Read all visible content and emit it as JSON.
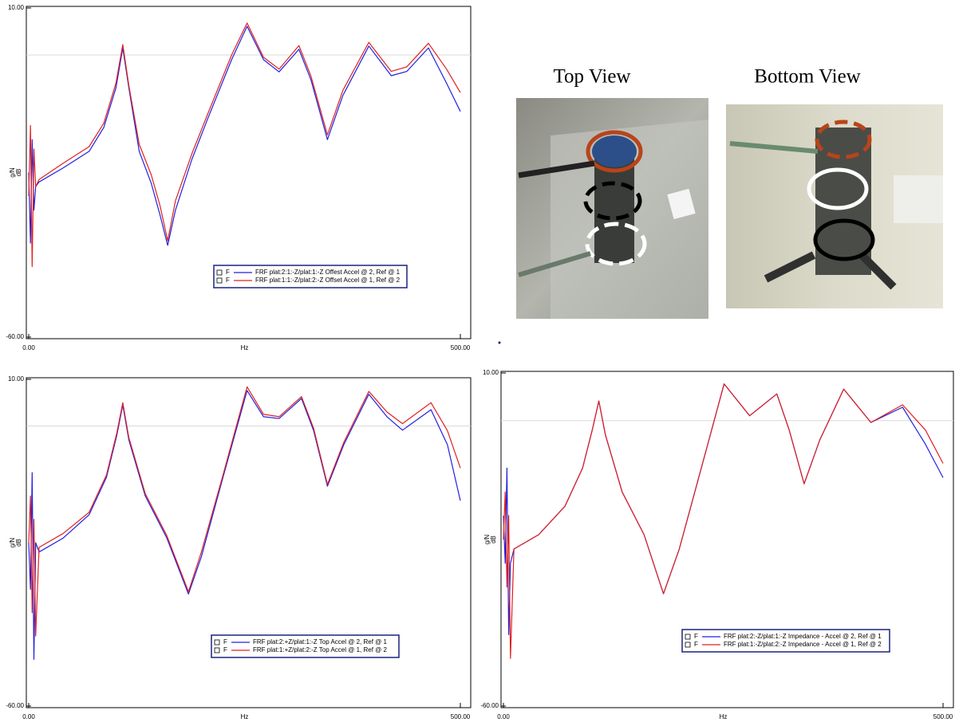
{
  "chart_data": [
    {
      "type": "line",
      "x": [
        0,
        2,
        4,
        6,
        8,
        12,
        40,
        70,
        87,
        101,
        109,
        116,
        128,
        142,
        152,
        161,
        170,
        189,
        207,
        235,
        253,
        272,
        290,
        313,
        327,
        346,
        364,
        394,
        420,
        438,
        463,
        484,
        500
      ],
      "series": [
        {
          "name": "FRF plat:2:1:-Z/plat:1:-Z  Offest Accel @ 2, Ref @ 1",
          "color": "#2020e0",
          "values": [
            -25,
            -40,
            -18,
            -33,
            -28,
            -27,
            -24,
            -20.5,
            -15.4,
            -7,
            1.5,
            -7,
            -20.5,
            -27.3,
            -34,
            -40.5,
            -33,
            -22.2,
            -13.7,
            -1,
            6.1,
            -1,
            -3.6,
            1.2,
            -5.3,
            -18,
            -8.6,
            1.9,
            -4.4,
            -3.5,
            1.5,
            -6,
            -12
          ]
        },
        {
          "name": "FRF plat:1:1:-Z/plat:2:-Z  Offset Accel @ 1, Ref @ 2",
          "color": "#e02020",
          "values": [
            -30,
            -15,
            -45,
            -20,
            -28,
            -26.5,
            -23,
            -19.5,
            -14.5,
            -6,
            2.2,
            -6.5,
            -19,
            -25.5,
            -32,
            -39.5,
            -31,
            -21,
            -12.7,
            0,
            6.8,
            -0.5,
            -3,
            2,
            -4.5,
            -17,
            -7.5,
            2.7,
            -3.5,
            -2.5,
            2.5,
            -3,
            -8
          ]
        }
      ],
      "xlim": [
        0,
        500
      ],
      "ylim": [
        -60,
        10
      ],
      "xticks": [
        {
          "value": 0,
          "label": "0.00"
        },
        {
          "value": 500,
          "label": "500.00"
        }
      ],
      "yticks": [
        {
          "value": -60,
          "label": "-60.00"
        },
        {
          "value": 10,
          "label": "10.00"
        }
      ],
      "x_label": "Hz",
      "y_label": [
        "g/N",
        "dB"
      ],
      "reference_line": 0,
      "legend": "lower right",
      "legend_flag": "F"
    },
    {
      "type": "line",
      "x": [
        0,
        2,
        4,
        6,
        8,
        12,
        40,
        70,
        90,
        102,
        109,
        116,
        135,
        160,
        185,
        200,
        225,
        253,
        272,
        290,
        316,
        330,
        346,
        365,
        394,
        415,
        433,
        466,
        485,
        500
      ],
      "series": [
        {
          "name": "FRF plat:2:+Z/plat:1:-Z  Top Accel @ 2, Ref @ 1",
          "color": "#2020e0",
          "values": [
            -25,
            -35,
            -10,
            -50,
            -25,
            -27,
            -24,
            -19,
            -11,
            -2,
            4.5,
            -3,
            -15,
            -24,
            -36,
            -28,
            -11,
            7.6,
            2,
            1.6,
            5.9,
            -1,
            -12.9,
            -4,
            6.8,
            2,
            -0.9,
            3.5,
            -4,
            -16
          ]
        },
        {
          "name": "FRF plat:1:+Z/plat:2:-Z  Top Accel @ 1, Ref @ 2",
          "color": "#e02020",
          "values": [
            -25,
            -15,
            -40,
            -20,
            -45,
            -26,
            -23,
            -18.5,
            -10.5,
            -1.5,
            5,
            -2.5,
            -14.5,
            -23.5,
            -35.5,
            -27,
            -10.5,
            8.4,
            2.5,
            2,
            6.3,
            -0.5,
            -12.5,
            -3.5,
            7.4,
            3,
            0.5,
            5,
            -1,
            -9
          ]
        }
      ],
      "xlim": [
        0,
        500
      ],
      "ylim": [
        -60,
        10
      ],
      "xticks": [
        {
          "value": 0,
          "label": "0.00"
        },
        {
          "value": 500,
          "label": "500.00"
        }
      ],
      "yticks": [
        {
          "value": -60,
          "label": "-60.00"
        },
        {
          "value": 10,
          "label": "10.00"
        }
      ],
      "x_label": "Hz",
      "y_label": [
        "g/N",
        "dB"
      ],
      "reference_line": 0,
      "legend": "lower right",
      "legend_flag": "F"
    },
    {
      "type": "line",
      "x": [
        0,
        2,
        4,
        6,
        8,
        12,
        40,
        70,
        90,
        101,
        108.5,
        116,
        135,
        160,
        182,
        200,
        225,
        251,
        280,
        311,
        325,
        342,
        360,
        387,
        418,
        454,
        480,
        500
      ],
      "series": [
        {
          "name": "FRF plat:2:-Z/plat:1:-Z  Impedance - Accel @ 2, Ref @ 1",
          "color": "#2020e0",
          "values": [
            -20,
            -30,
            -10,
            -45,
            -30,
            -27,
            -24,
            -18,
            -10,
            -2,
            4.1,
            -3,
            -15,
            -24,
            -36.4,
            -27,
            -10,
            7.7,
            1,
            5.6,
            -2,
            -13.3,
            -4,
            6.6,
            -0.4,
            2.8,
            -5,
            -12
          ]
        },
        {
          "name": "FRF plat:1:-Z/plat:2:-Z  Impedance - Accel @ 1, Ref @ 2",
          "color": "#e02020",
          "values": [
            -25,
            -15,
            -35,
            -20,
            -50,
            -27,
            -24,
            -18,
            -10,
            -2,
            4.1,
            -3,
            -15,
            -24,
            -36.4,
            -27,
            -10,
            7.7,
            1,
            5.6,
            -2,
            -13.3,
            -4,
            6.6,
            -0.4,
            3.3,
            -2,
            -9
          ]
        }
      ],
      "xlim": [
        0,
        500
      ],
      "ylim": [
        -60,
        10
      ],
      "xticks": [
        {
          "value": 0,
          "label": "0.00"
        },
        {
          "value": 500,
          "label": "500.00"
        }
      ],
      "yticks": [
        {
          "value": -60,
          "label": "-60.00"
        },
        {
          "value": 10,
          "label": "10.00"
        }
      ],
      "x_label": "Hz",
      "y_label": [
        "g/N",
        "dB"
      ],
      "reference_line": 0,
      "legend": "lower right",
      "legend_flag": "F"
    }
  ],
  "photos": {
    "top_view_label": "Top View",
    "bottom_view_label": "Bottom View"
  }
}
